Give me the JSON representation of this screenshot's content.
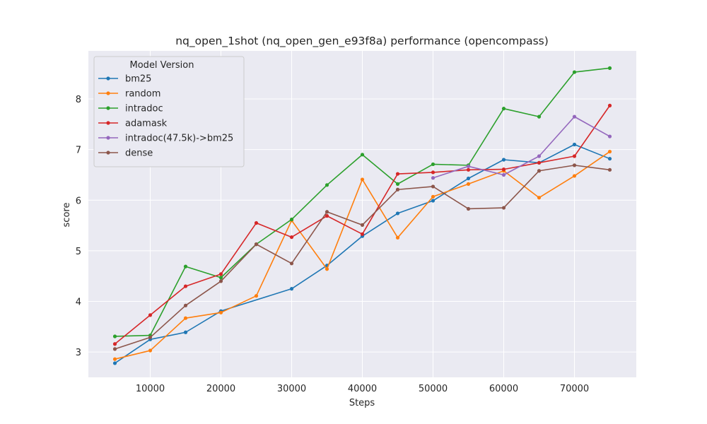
{
  "chart_data": {
    "type": "line",
    "title": "nq_open_1shot (nq_open_gen_e93f8a) performance (opencompass)",
    "xlabel": "Steps",
    "ylabel": "score",
    "xlim": [
      1250,
      78750
    ],
    "ylim": [
      2.5,
      8.95
    ],
    "xticks": [
      10000,
      20000,
      30000,
      40000,
      50000,
      60000,
      70000
    ],
    "yticks": [
      3,
      4,
      5,
      6,
      7,
      8
    ],
    "grid": true,
    "legend": {
      "title": "Model Version",
      "placement": "top-left"
    },
    "series": [
      {
        "name": "bm25",
        "color": "#1f77b4",
        "x": [
          5000,
          10000,
          15000,
          20000,
          30000,
          35000,
          40000,
          45000,
          50000,
          55000,
          60000,
          65000,
          70000,
          75000
        ],
        "y": [
          2.78,
          3.25,
          3.39,
          3.81,
          4.25,
          4.71,
          5.29,
          5.74,
          5.99,
          6.43,
          6.8,
          6.74,
          7.1,
          6.82
        ]
      },
      {
        "name": "random",
        "color": "#ff7f0e",
        "x": [
          5000,
          10000,
          15000,
          20000,
          25000,
          30000,
          35000,
          40000,
          45000,
          50000,
          55000,
          60000,
          65000,
          70000,
          75000
        ],
        "y": [
          2.86,
          3.03,
          3.67,
          3.78,
          4.11,
          5.6,
          4.64,
          6.41,
          5.26,
          6.07,
          6.32,
          6.58,
          6.05,
          6.48,
          6.96
        ]
      },
      {
        "name": "intradoc",
        "color": "#2ca02c",
        "x": [
          5000,
          10000,
          15000,
          20000,
          25000,
          30000,
          35000,
          40000,
          45000,
          50000,
          55000,
          60000,
          65000,
          70000,
          75000
        ],
        "y": [
          3.31,
          3.33,
          4.69,
          4.47,
          5.13,
          5.62,
          6.3,
          6.9,
          6.32,
          6.71,
          6.69,
          7.81,
          7.65,
          8.53,
          8.61
        ]
      },
      {
        "name": "adamask",
        "color": "#d62728",
        "x": [
          5000,
          10000,
          15000,
          20000,
          25000,
          30000,
          35000,
          40000,
          45000,
          50000,
          55000,
          60000,
          65000,
          70000,
          75000
        ],
        "y": [
          3.16,
          3.73,
          4.3,
          4.54,
          5.55,
          5.27,
          5.69,
          5.33,
          6.52,
          6.55,
          6.6,
          6.61,
          6.74,
          6.87,
          7.87
        ]
      },
      {
        "name": "intradoc(47.5k)->bm25",
        "color": "#9467bd",
        "x": [
          50000,
          55000,
          60000,
          65000,
          70000,
          75000
        ],
        "y": [
          6.44,
          6.67,
          6.5,
          6.87,
          7.65,
          7.26
        ]
      },
      {
        "name": "dense",
        "color": "#8c564b",
        "x": [
          5000,
          10000,
          15000,
          20000,
          25000,
          30000,
          35000,
          40000,
          45000,
          50000,
          55000,
          60000,
          65000,
          70000,
          75000
        ],
        "y": [
          3.06,
          3.29,
          3.92,
          4.4,
          5.13,
          4.75,
          5.77,
          5.51,
          6.21,
          6.27,
          5.83,
          5.85,
          6.58,
          6.69,
          6.6
        ]
      }
    ]
  }
}
